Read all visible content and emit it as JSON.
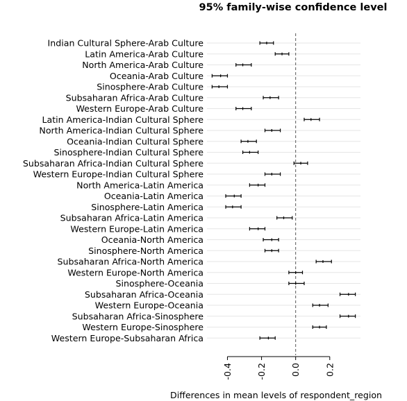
{
  "chart_data": {
    "type": "interval",
    "title": "95% family-wise confidence level",
    "xlabel": "Differences in mean levels of respondent_region",
    "ylabel": "",
    "xlim": [
      -0.52,
      0.38
    ],
    "xticks": [
      -0.4,
      -0.2,
      0.0,
      0.2
    ],
    "xtick_labels": [
      "-0.4",
      "-0.2",
      "0.0",
      "0.2"
    ],
    "reference_line": 0.0,
    "grid": "horizontal",
    "comparisons": [
      {
        "label": "Indian Cultural Sphere-Arab Culture",
        "lwr": -0.21,
        "diff": -0.17,
        "upr": -0.13
      },
      {
        "label": "Latin America-Arab Culture",
        "lwr": -0.12,
        "diff": -0.08,
        "upr": -0.04
      },
      {
        "label": "North America-Arab Culture",
        "lwr": -0.35,
        "diff": -0.31,
        "upr": -0.26
      },
      {
        "label": "Oceania-Arab Culture",
        "lwr": -0.49,
        "diff": -0.44,
        "upr": -0.4
      },
      {
        "label": "Sinosphere-Arab Culture",
        "lwr": -0.49,
        "diff": -0.45,
        "upr": -0.4
      },
      {
        "label": "Subsaharan Africa-Arab Culture",
        "lwr": -0.19,
        "diff": -0.15,
        "upr": -0.1
      },
      {
        "label": "Western Europe-Arab Culture",
        "lwr": -0.35,
        "diff": -0.31,
        "upr": -0.26
      },
      {
        "label": "Latin America-Indian Cultural Sphere",
        "lwr": 0.05,
        "diff": 0.09,
        "upr": 0.14
      },
      {
        "label": "North America-Indian Cultural Sphere",
        "lwr": -0.18,
        "diff": -0.14,
        "upr": -0.09
      },
      {
        "label": "Oceania-Indian Cultural Sphere",
        "lwr": -0.32,
        "diff": -0.28,
        "upr": -0.23
      },
      {
        "label": "Sinosphere-Indian Cultural Sphere",
        "lwr": -0.31,
        "diff": -0.27,
        "upr": -0.22
      },
      {
        "label": "Subsaharan Africa-Indian Cultural Sphere",
        "lwr": -0.01,
        "diff": 0.03,
        "upr": 0.07
      },
      {
        "label": "Western Europe-Indian Cultural Sphere",
        "lwr": -0.18,
        "diff": -0.14,
        "upr": -0.09
      },
      {
        "label": "North America-Latin America",
        "lwr": -0.27,
        "diff": -0.22,
        "upr": -0.18
      },
      {
        "label": "Oceania-Latin America",
        "lwr": -0.41,
        "diff": -0.36,
        "upr": -0.32
      },
      {
        "label": "Sinosphere-Latin America",
        "lwr": -0.41,
        "diff": -0.37,
        "upr": -0.32
      },
      {
        "label": "Subsaharan Africa-Latin America",
        "lwr": -0.11,
        "diff": -0.07,
        "upr": -0.02
      },
      {
        "label": "Western Europe-Latin America",
        "lwr": -0.27,
        "diff": -0.22,
        "upr": -0.18
      },
      {
        "label": "Oceania-North America",
        "lwr": -0.19,
        "diff": -0.14,
        "upr": -0.1
      },
      {
        "label": "Sinosphere-North America",
        "lwr": -0.18,
        "diff": -0.14,
        "upr": -0.1
      },
      {
        "label": "Subsaharan Africa-North America",
        "lwr": 0.12,
        "diff": 0.16,
        "upr": 0.21
      },
      {
        "label": "Western Europe-North America",
        "lwr": -0.04,
        "diff": 0.0,
        "upr": 0.04
      },
      {
        "label": "Sinosphere-Oceania",
        "lwr": -0.04,
        "diff": 0.0,
        "upr": 0.05
      },
      {
        "label": "Subsaharan Africa-Oceania",
        "lwr": 0.26,
        "diff": 0.31,
        "upr": 0.35
      },
      {
        "label": "Western Europe-Oceania",
        "lwr": 0.1,
        "diff": 0.14,
        "upr": 0.19
      },
      {
        "label": "Subsaharan Africa-Sinosphere",
        "lwr": 0.26,
        "diff": 0.31,
        "upr": 0.35
      },
      {
        "label": "Western Europe-Sinosphere",
        "lwr": 0.1,
        "diff": 0.14,
        "upr": 0.18
      },
      {
        "label": "Western Europe-Subsaharan Africa",
        "lwr": -0.21,
        "diff": -0.16,
        "upr": -0.12
      }
    ]
  }
}
